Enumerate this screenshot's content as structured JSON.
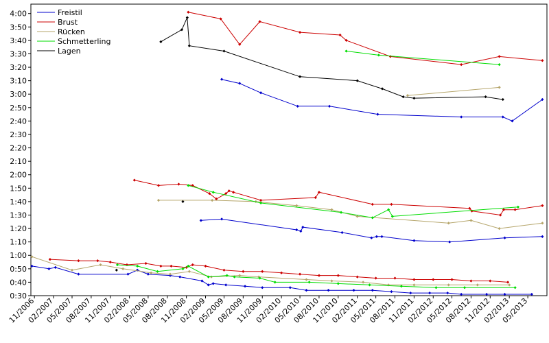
{
  "chart_data": {
    "type": "line",
    "title": "",
    "xlabel": "",
    "ylabel": "",
    "grid": false,
    "legend_position": "top-left",
    "x_range": [
      "2006-10-15",
      "2013-08-01"
    ],
    "y_range": [
      "0:30",
      "4:07"
    ],
    "y_ticks": [
      "0:30",
      "0:40",
      "0:50",
      "1:00",
      "1:10",
      "1:20",
      "1:30",
      "1:40",
      "1:50",
      "2:00",
      "2:10",
      "2:20",
      "2:30",
      "2:40",
      "2:50",
      "3:00",
      "3:10",
      "3:20",
      "3:30",
      "3:40",
      "3:50",
      "4:00"
    ],
    "x_ticks": [
      {
        "date": "2006-11-01",
        "label": "11/2006"
      },
      {
        "date": "2007-02-01",
        "label": "02/2007"
      },
      {
        "date": "2007-05-01",
        "label": "05/2007"
      },
      {
        "date": "2007-08-01",
        "label": "08/2007"
      },
      {
        "date": "2007-11-01",
        "label": "11/2007"
      },
      {
        "date": "2008-02-01",
        "label": "02/2008"
      },
      {
        "date": "2008-05-01",
        "label": "05/2008"
      },
      {
        "date": "2008-08-01",
        "label": "08/2008"
      },
      {
        "date": "2008-11-01",
        "label": "11/2008"
      },
      {
        "date": "2009-02-01",
        "label": "02/2009"
      },
      {
        "date": "2009-05-01",
        "label": "05/2009"
      },
      {
        "date": "2009-08-01",
        "label": "08/2009"
      },
      {
        "date": "2009-11-01",
        "label": "11/2009"
      },
      {
        "date": "2010-02-01",
        "label": "02/2010"
      },
      {
        "date": "2010-05-01",
        "label": "05/2010"
      },
      {
        "date": "2010-08-01",
        "label": "08/2010"
      },
      {
        "date": "2010-11-01",
        "label": "11/2010"
      },
      {
        "date": "2011-02-01",
        "label": "02/2011"
      },
      {
        "date": "2011-05-01",
        "label": "05/2011"
      },
      {
        "date": "2011-08-01",
        "label": "08/2011"
      },
      {
        "date": "2011-11-01",
        "label": "11/2011"
      },
      {
        "date": "2012-02-01",
        "label": "02/2012"
      },
      {
        "date": "2012-05-01",
        "label": "05/2012"
      },
      {
        "date": "2012-08-01",
        "label": "08/2012"
      },
      {
        "date": "2012-11-01",
        "label": "11/2012"
      },
      {
        "date": "2013-02-01",
        "label": "02/2013"
      },
      {
        "date": "2013-05-01",
        "label": "05/2013"
      }
    ],
    "series": [
      {
        "name": "Freistil",
        "color": "#0000cc",
        "lines": [
          [
            [
              "2009-04-20",
              "3:11"
            ],
            [
              "2009-07-15",
              "3:08"
            ],
            [
              "2009-10-25",
              "3:01"
            ],
            [
              "2010-04-20",
              "2:51"
            ],
            [
              "2010-09-20",
              "2:51"
            ],
            [
              "2011-05-10",
              "2:45"
            ],
            [
              "2012-06-15",
              "2:43"
            ],
            [
              "2013-01-01",
              "2:43"
            ],
            [
              "2013-02-15",
              "2:40"
            ],
            [
              "2013-07-10",
              "2:56"
            ]
          ],
          [
            [
              "2009-01-10",
              "1:26"
            ],
            [
              "2009-04-20",
              "1:27"
            ],
            [
              "2010-04-15",
              "1:19"
            ],
            [
              "2010-05-05",
              "1:18"
            ],
            [
              "2010-05-15",
              "1:21"
            ],
            [
              "2010-11-20",
              "1:17"
            ],
            [
              "2011-04-10",
              "1:13"
            ],
            [
              "2011-05-05",
              "1:14"
            ],
            [
              "2011-05-30",
              "1:14"
            ],
            [
              "2011-11-01",
              "1:11"
            ],
            [
              "2012-04-20",
              "1:10"
            ],
            [
              "2013-01-10",
              "1:13"
            ],
            [
              "2013-07-10",
              "1:14"
            ]
          ],
          [
            [
              "2006-10-20",
              "0:52"
            ],
            [
              "2007-01-10",
              "0:50"
            ],
            [
              "2007-02-10",
              "0:51"
            ],
            [
              "2007-06-01",
              "0:46"
            ],
            [
              "2008-01-25",
              "0:46"
            ],
            [
              "2008-03-10",
              "0:49"
            ],
            [
              "2008-05-01",
              "0:46"
            ],
            [
              "2008-08-15",
              "0:45"
            ],
            [
              "2008-10-01",
              "0:44"
            ],
            [
              "2009-01-15",
              "0:41"
            ],
            [
              "2009-02-15",
              "0:38"
            ],
            [
              "2009-03-10",
              "0:39"
            ],
            [
              "2009-05-10",
              "0:38"
            ],
            [
              "2009-08-10",
              "0:37"
            ],
            [
              "2009-11-01",
              "0:36"
            ],
            [
              "2010-03-15",
              "0:36"
            ],
            [
              "2010-06-01",
              "0:34"
            ],
            [
              "2010-09-15",
              "0:34"
            ],
            [
              "2011-01-15",
              "0:34"
            ],
            [
              "2011-04-15",
              "0:34"
            ],
            [
              "2011-07-15",
              "0:33"
            ],
            [
              "2011-10-15",
              "0:32"
            ],
            [
              "2012-01-15",
              "0:32"
            ],
            [
              "2012-04-10",
              "0:32"
            ],
            [
              "2012-06-15",
              "0:31"
            ],
            [
              "2012-10-15",
              "0:31"
            ],
            [
              "2013-01-10",
              "0:31"
            ],
            [
              "2013-05-20",
              "0:31"
            ]
          ]
        ]
      },
      {
        "name": "Brust",
        "color": "#cc0000",
        "lines": [
          [
            [
              "2008-11-10",
              "4:01"
            ],
            [
              "2009-04-15",
              "3:56"
            ],
            [
              "2009-07-15",
              "3:37"
            ],
            [
              "2009-10-20",
              "3:54"
            ],
            [
              "2010-05-01",
              "3:46"
            ],
            [
              "2010-11-10",
              "3:44"
            ],
            [
              "2010-12-10",
              "3:40"
            ],
            [
              "2011-07-10",
              "3:28"
            ],
            [
              "2012-06-15",
              "3:22"
            ],
            [
              "2012-12-15",
              "3:28"
            ],
            [
              "2013-07-10",
              "3:25"
            ]
          ],
          [
            [
              "2008-02-25",
              "1:56"
            ],
            [
              "2008-06-20",
              "1:52"
            ],
            [
              "2008-09-25",
              "1:53"
            ],
            [
              "2008-12-01",
              "1:52"
            ],
            [
              "2009-02-20",
              "1:46"
            ],
            [
              "2009-03-25",
              "1:42"
            ],
            [
              "2009-05-10",
              "1:46"
            ],
            [
              "2009-05-25",
              "1:48"
            ],
            [
              "2009-06-15",
              "1:47"
            ],
            [
              "2009-10-25",
              "1:41"
            ],
            [
              "2010-07-15",
              "1:43"
            ],
            [
              "2010-08-01",
              "1:47"
            ],
            [
              "2011-04-15",
              "1:38"
            ],
            [
              "2011-07-15",
              "1:38"
            ],
            [
              "2012-07-25",
              "1:35"
            ],
            [
              "2012-08-05",
              "1:33"
            ],
            [
              "2012-12-20",
              "1:30"
            ],
            [
              "2013-01-05",
              "1:34"
            ],
            [
              "2013-03-01",
              "1:34"
            ],
            [
              "2013-07-10",
              "1:37"
            ]
          ],
          [
            [
              "2007-01-15",
              "0:57"
            ],
            [
              "2007-06-01",
              "0:56"
            ],
            [
              "2007-09-01",
              "0:56"
            ],
            [
              "2007-11-01",
              "0:55"
            ],
            [
              "2008-01-20",
              "0:53"
            ],
            [
              "2008-04-20",
              "0:54"
            ],
            [
              "2008-07-01",
              "0:52"
            ],
            [
              "2008-08-20",
              "0:52"
            ],
            [
              "2008-11-01",
              "0:51"
            ],
            [
              "2008-12-01",
              "0:53"
            ],
            [
              "2009-02-01",
              "0:52"
            ],
            [
              "2009-05-01",
              "0:49"
            ],
            [
              "2009-08-01",
              "0:48"
            ],
            [
              "2009-11-01",
              "0:48"
            ],
            [
              "2010-02-01",
              "0:47"
            ],
            [
              "2010-05-01",
              "0:46"
            ],
            [
              "2010-08-01",
              "0:45"
            ],
            [
              "2010-11-01",
              "0:45"
            ],
            [
              "2011-02-01",
              "0:44"
            ],
            [
              "2011-05-01",
              "0:43"
            ],
            [
              "2011-08-01",
              "0:43"
            ],
            [
              "2011-11-01",
              "0:42"
            ],
            [
              "2012-02-01",
              "0:42"
            ],
            [
              "2012-05-01",
              "0:42"
            ],
            [
              "2012-08-01",
              "0:41"
            ],
            [
              "2012-11-01",
              "0:41"
            ],
            [
              "2013-01-25",
              "0:40"
            ]
          ]
        ]
      },
      {
        "name": "Rücken",
        "color": "#b5a56a",
        "lines": [
          [
            [
              "2011-10-01",
              "2:59"
            ],
            [
              "2012-12-15",
              "3:05"
            ]
          ],
          [
            [
              "2008-06-20",
              "1:41"
            ],
            [
              "2009-03-05",
              "1:41"
            ],
            [
              "2009-10-01",
              "1:40"
            ],
            [
              "2010-04-15",
              "1:37"
            ],
            [
              "2010-10-01",
              "1:34"
            ],
            [
              "2011-02-01",
              "1:29"
            ],
            [
              "2012-04-15",
              "1:24"
            ],
            [
              "2012-08-01",
              "1:26"
            ],
            [
              "2012-12-15",
              "1:20"
            ],
            [
              "2013-07-10",
              "1:24"
            ]
          ],
          [
            [
              "2006-10-20",
              "0:59"
            ],
            [
              "2007-05-01",
              "0:49"
            ],
            [
              "2007-09-15",
              "0:53"
            ],
            [
              "2008-01-01",
              "0:50"
            ],
            [
              "2008-05-15",
              "0:47"
            ],
            [
              "2008-08-15",
              "0:46"
            ],
            [
              "2008-11-15",
              "0:48"
            ],
            [
              "2009-03-01",
              "0:44"
            ],
            [
              "2009-07-15",
              "0:45"
            ],
            [
              "2009-10-15",
              "0:44"
            ],
            [
              "2010-06-01",
              "0:42"
            ],
            [
              "2010-10-01",
              "0:41"
            ],
            [
              "2011-03-01",
              "0:40"
            ],
            [
              "2011-07-01",
              "0:38"
            ],
            [
              "2011-11-01",
              "0:38"
            ],
            [
              "2012-04-15",
              "0:38"
            ],
            [
              "2012-09-01",
              "0:38"
            ],
            [
              "2013-02-01",
              "0:38"
            ]
          ]
        ]
      },
      {
        "name": "Schmetterling",
        "color": "#00dd00",
        "lines": [
          [
            [
              "2010-12-10",
              "3:32"
            ],
            [
              "2011-05-15",
              "3:29"
            ],
            [
              "2012-12-15",
              "3:22"
            ]
          ],
          [
            [
              "2008-11-10",
              "1:52"
            ],
            [
              "2009-03-10",
              "1:47"
            ],
            [
              "2009-10-25",
              "1:39"
            ],
            [
              "2010-11-15",
              "1:32"
            ],
            [
              "2011-04-15",
              "1:28"
            ],
            [
              "2011-07-01",
              "1:34"
            ],
            [
              "2011-07-20",
              "1:29"
            ],
            [
              "2013-03-15",
              "1:36"
            ]
          ],
          [
            [
              "2007-12-05",
              "0:53"
            ],
            [
              "2008-03-10",
              "0:52"
            ],
            [
              "2008-06-15",
              "0:48"
            ],
            [
              "2008-10-15",
              "0:50"
            ],
            [
              "2008-11-10",
              "0:52"
            ],
            [
              "2009-02-15",
              "0:44"
            ],
            [
              "2009-05-15",
              "0:45"
            ],
            [
              "2009-06-20",
              "0:44"
            ],
            [
              "2009-10-20",
              "0:43"
            ],
            [
              "2010-01-01",
              "0:40"
            ],
            [
              "2010-06-15",
              "0:40"
            ],
            [
              "2010-11-01",
              "0:39"
            ],
            [
              "2011-04-01",
              "0:38"
            ],
            [
              "2011-09-01",
              "0:37"
            ],
            [
              "2012-02-15",
              "0:36"
            ],
            [
              "2012-07-01",
              "0:36"
            ],
            [
              "2013-03-01",
              "0:36"
            ]
          ]
        ]
      },
      {
        "name": "Lagen",
        "color": "#000000",
        "lines": [
          [
            [
              "2008-07-01",
              "3:39"
            ],
            [
              "2008-10-10",
              "3:48"
            ],
            [
              "2008-11-05",
              "3:57"
            ],
            [
              "2008-11-15",
              "3:36"
            ],
            [
              "2009-05-01",
              "3:32"
            ],
            [
              "2010-05-01",
              "3:13"
            ],
            [
              "2011-02-01",
              "3:10"
            ],
            [
              "2011-06-01",
              "3:04"
            ],
            [
              "2011-09-10",
              "2:58"
            ],
            [
              "2011-11-01",
              "2:57"
            ],
            [
              "2012-10-10",
              "2:58"
            ],
            [
              "2013-01-01",
              "2:56"
            ]
          ],
          [
            [
              "2008-10-15",
              "1:40"
            ]
          ],
          [
            [
              "2007-12-01",
              "0:49"
            ]
          ]
        ]
      }
    ]
  }
}
